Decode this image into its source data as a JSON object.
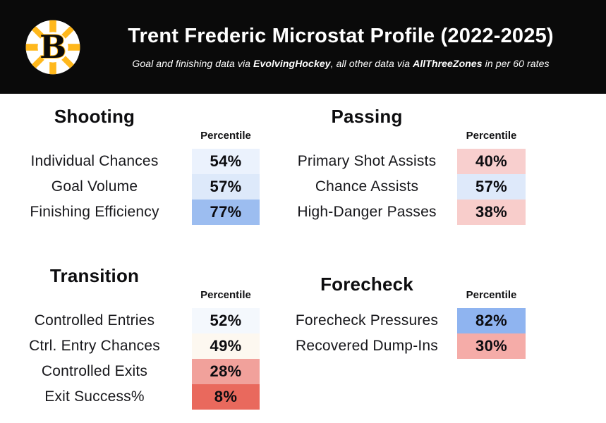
{
  "header": {
    "title": "Trent Frederic Microstat Profile (2022-2025)",
    "subtitle": {
      "part1": "Goal and finishing data via ",
      "source1": "EvolvingHockey",
      "part2": ", all other data via ",
      "source2": "AllThreeZones",
      "part3": " in per 60 rates"
    },
    "logo": "boston-bruins-spoked-b-logo",
    "colors": {
      "header_background": "#0a0a0a",
      "bruins_gold": "#FFB81C",
      "title_text": "#ffffff"
    }
  },
  "percentile_header": "Percentile",
  "sections": [
    {
      "title": "Shooting",
      "rows": [
        {
          "label": "Individual Chances",
          "value": "54%",
          "color": "#EBF2FD"
        },
        {
          "label": "Goal Volume",
          "value": "57%",
          "color": "#DDE9FA"
        },
        {
          "label": "Finishing Efficiency",
          "value": "77%",
          "color": "#9CBDF0"
        }
      ]
    },
    {
      "title": "Passing",
      "rows": [
        {
          "label": "Primary Shot Assists",
          "value": "40%",
          "color": "#F8CFCE"
        },
        {
          "label": "Chance Assists",
          "value": "57%",
          "color": "#DEE9FA"
        },
        {
          "label": "High-Danger Passes",
          "value": "38%",
          "color": "#F8CDCB"
        }
      ]
    },
    {
      "title": "Transition",
      "rows": [
        {
          "label": "Controlled Entries",
          "value": "52%",
          "color": "#F4F8FD"
        },
        {
          "label": "Ctrl. Entry Chances",
          "value": "49%",
          "color": "#FDF8F0"
        },
        {
          "label": "Controlled Exits",
          "value": "28%",
          "color": "#F1A19B"
        },
        {
          "label": "Exit Success%",
          "value": "8%",
          "color": "#E9695D"
        }
      ]
    },
    {
      "title": "Forecheck",
      "rows": [
        {
          "label": "Forecheck Pressures",
          "value": "82%",
          "color": "#8FB4F0"
        },
        {
          "label": "Recovered Dump-Ins",
          "value": "30%",
          "color": "#F5ACA8"
        }
      ]
    }
  ],
  "chart_data": {
    "type": "table",
    "title": "Trent Frederic Microstat Profile (2022-2025)",
    "subtitle": "Goal and finishing data via EvolvingHockey, all other data via AllThreeZones in per 60 rates",
    "value_column": "Percentile",
    "groups": [
      {
        "name": "Shooting",
        "metrics": [
          "Individual Chances",
          "Goal Volume",
          "Finishing Efficiency"
        ],
        "percentiles": [
          54,
          57,
          77
        ]
      },
      {
        "name": "Passing",
        "metrics": [
          "Primary Shot Assists",
          "Chance Assists",
          "High-Danger Passes"
        ],
        "percentiles": [
          40,
          57,
          38
        ]
      },
      {
        "name": "Transition",
        "metrics": [
          "Controlled Entries",
          "Ctrl. Entry Chances",
          "Controlled Exits",
          "Exit Success%"
        ],
        "percentiles": [
          52,
          49,
          28,
          8
        ]
      },
      {
        "name": "Forecheck",
        "metrics": [
          "Forecheck Pressures",
          "Recovered Dump-Ins"
        ],
        "percentiles": [
          82,
          30
        ]
      }
    ],
    "color_scale": "heat scale: low percentile = red, mid = white, high percentile = blue",
    "legend_position": "none",
    "grid": false
  }
}
